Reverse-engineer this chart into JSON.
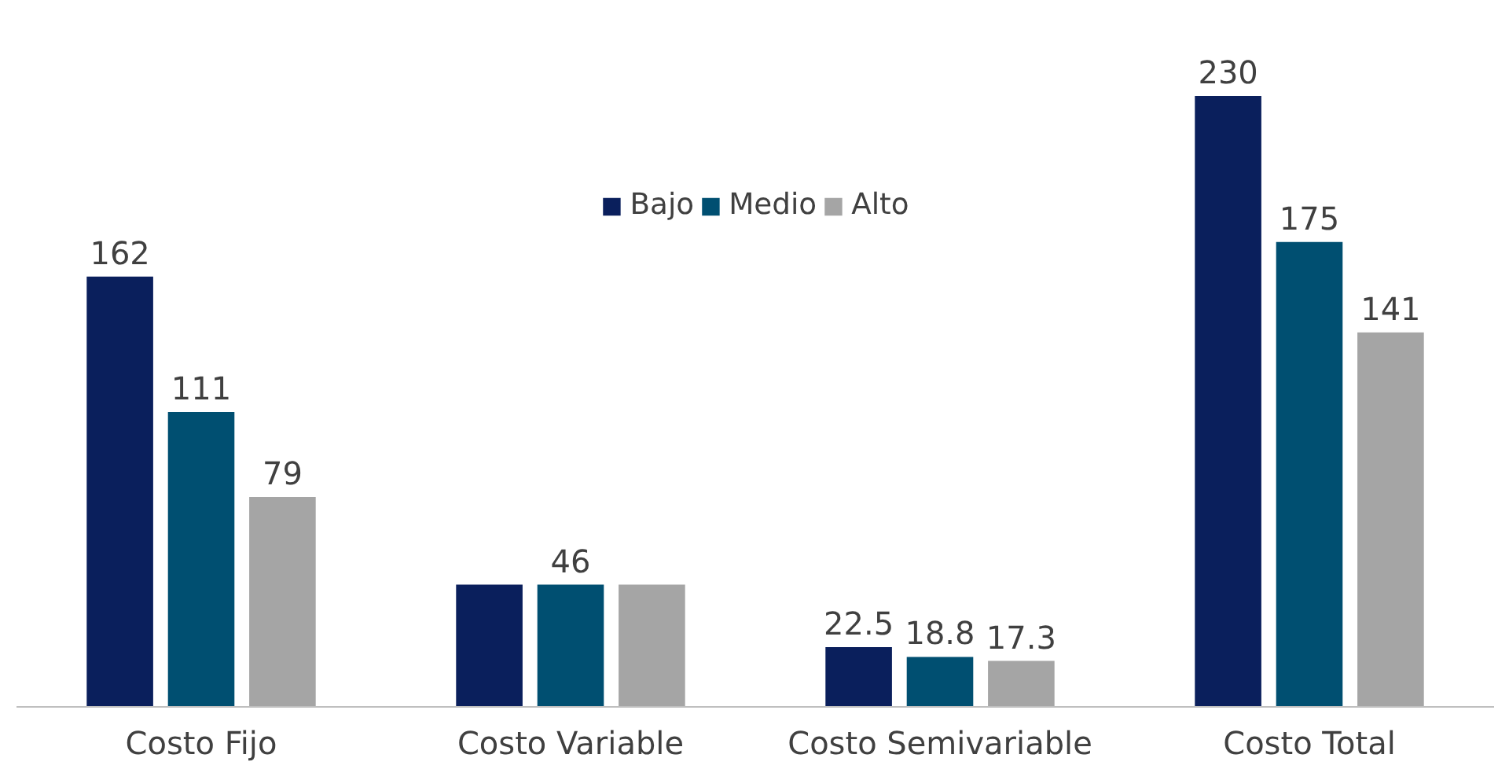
{
  "chart_data": {
    "type": "bar",
    "categories": [
      "Costo Fijo",
      "Costo Variable",
      "Costo Semivariable",
      "Costo Total"
    ],
    "series": [
      {
        "name": "Bajo",
        "color": "#0a1f5c",
        "values": [
          162,
          46,
          22.5,
          230
        ],
        "value_labels": [
          "162",
          null,
          "22.5",
          "230"
        ]
      },
      {
        "name": "Medio",
        "color": "#004f71",
        "values": [
          111,
          46,
          18.8,
          175
        ],
        "value_labels": [
          "111",
          "46",
          "18.8",
          "175"
        ]
      },
      {
        "name": "Alto",
        "color": "#a5a5a5",
        "values": [
          79,
          46,
          17.3,
          141
        ],
        "value_labels": [
          "79",
          null,
          "17.3",
          "141"
        ]
      }
    ],
    "legend": "top",
    "grid": false
  }
}
